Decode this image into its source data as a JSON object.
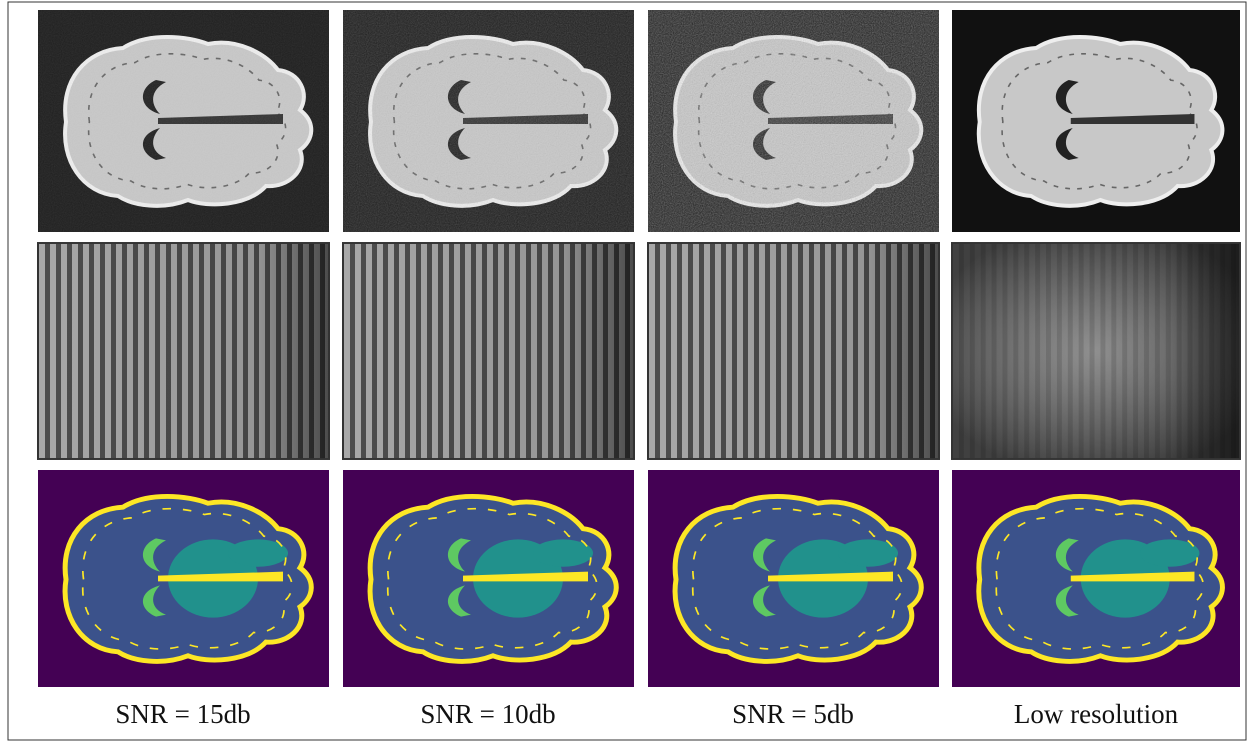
{
  "captions": [
    "SNR = 15db",
    "SNR = 10db",
    "SNR = 5db",
    "Low resolution"
  ]
}
